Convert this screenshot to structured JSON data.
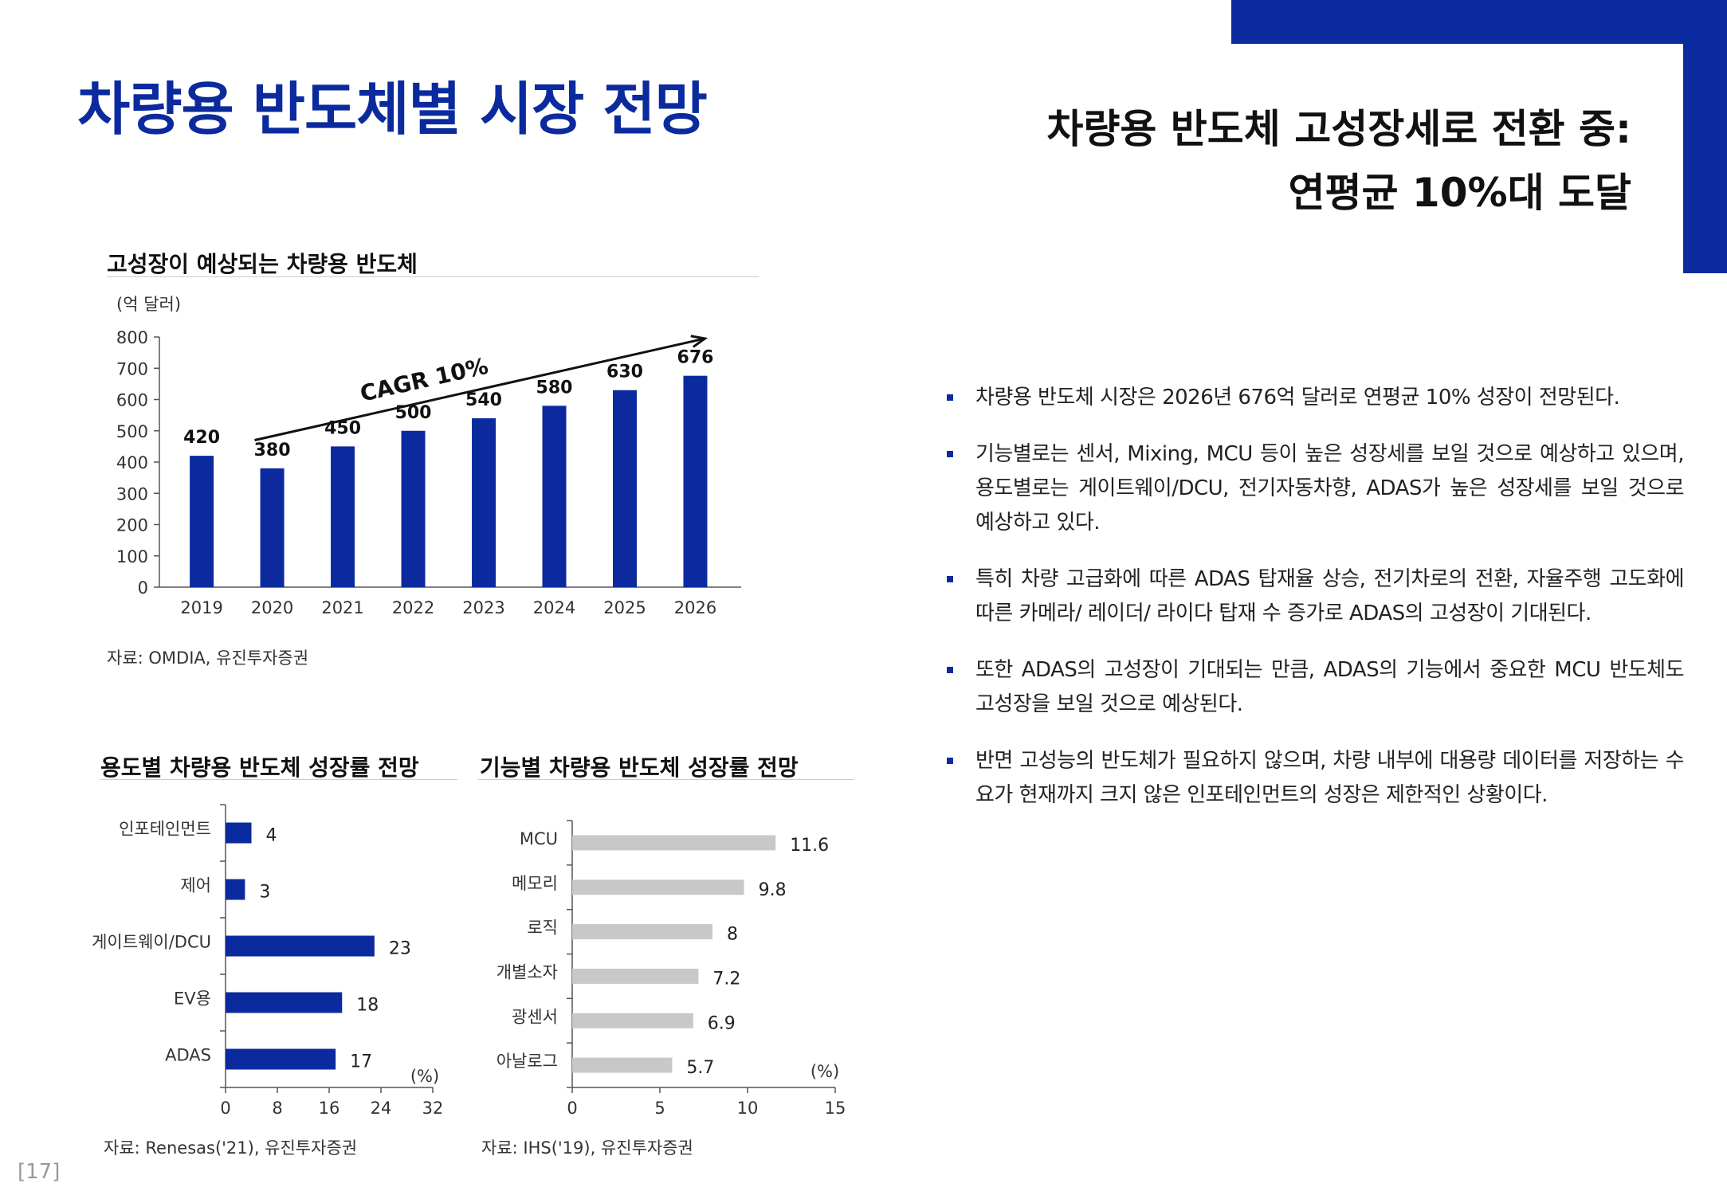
{
  "page": {
    "title": "차량용 반도체별 시장 전망",
    "headline_line1": "차량용 반도체 고성장세로 전환 중:",
    "headline_line2": "연평균 10%대 도달",
    "page_number": "[17]",
    "accent_color": "#0a2a9e"
  },
  "bullets": [
    "차량용 반도체 시장은 2026년 676억 달러로 연평균 10% 성장이 전망된다.",
    " 기능별로는 센서, Mixing, MCU 등이 높은 성장세를 보일 것으로 예상하고 있으며, 용도별로는 게이트웨이/DCU, 전기자동차향, ADAS가 높은 성장세를 보일 것으로 예상하고 있다.",
    "특히 차량 고급화에 따른 ADAS 탑재율 상승, 전기차로의 전환, 자율주행 고도화에 따른 카메라/ 레이더/ 라이다 탑재 수 증가로 ADAS의 고성장이 기대된다.",
    "또한 ADAS의 고성장이 기대되는 만큼, ADAS의 기능에서 중요한 MCU 반도체도 고성장을 보일 것으로 예상된다.",
    "반면 고성능의 반도체가 필요하지 않으며, 차량 내부에 대용량 데이터를 저장하는 수요가 현재까지 크지 않은 인포테인먼트의 성장은 제한적인 상황이다."
  ],
  "chart_data": [
    {
      "type": "bar",
      "title": "고성장이 예상되는 차량용 반도체",
      "unit": "(억 달러)",
      "categories": [
        "2019",
        "2020",
        "2021",
        "2022",
        "2023",
        "2024",
        "2025",
        "2026"
      ],
      "values": [
        420,
        380,
        450,
        500,
        540,
        580,
        630,
        676
      ],
      "ylim": [
        0,
        800
      ],
      "yticks": [
        0,
        100,
        200,
        300,
        400,
        500,
        600,
        700,
        800
      ],
      "annotation": "CAGR 10%",
      "source": "자료: OMDIA, 유진투자증권",
      "color": "#0a2a9e"
    },
    {
      "type": "bar",
      "orientation": "horizontal",
      "title": "용도별 차량용 반도체 성장률 전망",
      "categories": [
        "인포테인먼트",
        "제어",
        "게이트웨이/DCU",
        "EV용",
        "ADAS"
      ],
      "values": [
        4,
        3,
        23,
        18,
        17
      ],
      "xlim": [
        0,
        32
      ],
      "xticks": [
        0,
        8,
        16,
        24,
        32
      ],
      "unit": "(%)",
      "source": "자료: Renesas('21), 유진투자증권",
      "color": "#0a2a9e"
    },
    {
      "type": "bar",
      "orientation": "horizontal",
      "title": "기능별 차량용 반도체 성장률 전망",
      "categories": [
        "MCU",
        "메모리",
        "로직",
        "개별소자",
        "광센서",
        "아날로그"
      ],
      "values": [
        11.6,
        9.8,
        8,
        7.2,
        6.9,
        5.7
      ],
      "labels": [
        "11.6",
        "9.8",
        "8",
        "7.2",
        "6.9",
        "5.7"
      ],
      "xlim": [
        0,
        15
      ],
      "xticks": [
        0,
        5,
        10,
        15
      ],
      "unit": "(%)",
      "source": "자료: IHS('19), 유진투자증권",
      "color": "#c8c8c8"
    }
  ]
}
